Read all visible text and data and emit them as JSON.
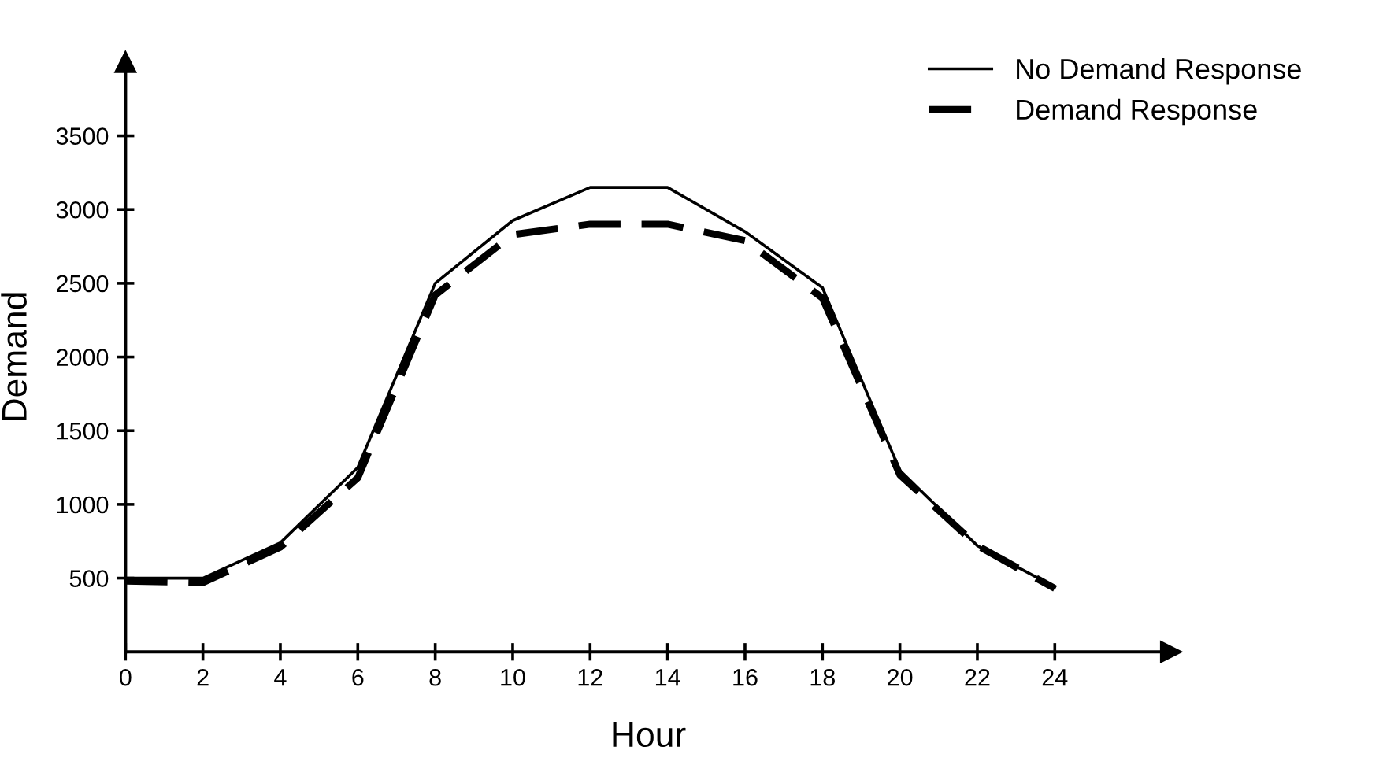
{
  "chart_data": {
    "type": "line",
    "xlabel": "Hour",
    "ylabel": "Demand",
    "x": [
      0,
      2,
      4,
      6,
      8,
      10,
      12,
      14,
      16,
      18,
      20,
      22,
      24
    ],
    "series": [
      {
        "name": "No Demand Response",
        "color": "#000000",
        "line_style": "solid",
        "values": [
          500,
          500,
          740,
          1250,
          2500,
          2925,
          3150,
          3150,
          2850,
          2470,
          1230,
          720,
          440
        ]
      },
      {
        "name": "Demand Response",
        "color": "#000000",
        "line_style": "dashed",
        "values": [
          480,
          470,
          710,
          1180,
          2420,
          2830,
          2900,
          2900,
          2790,
          2400,
          1200,
          720,
          430
        ]
      }
    ],
    "xlim": [
      0,
      27
    ],
    "ylim": [
      0,
      4000
    ],
    "xticks": [
      0,
      2,
      4,
      6,
      8,
      10,
      12,
      14,
      16,
      18,
      20,
      22,
      24
    ],
    "yticks": [
      500,
      1000,
      1500,
      2000,
      2500,
      3000,
      3500
    ],
    "grid": false,
    "legend": "top right",
    "marker": "none"
  }
}
